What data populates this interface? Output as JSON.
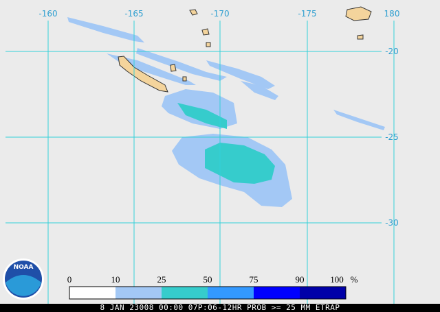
{
  "map": {
    "longitude_labels": [
      "-160",
      "-165",
      "-170",
      "-175",
      "180"
    ],
    "latitude_labels": [
      "-20",
      "-25",
      "-30"
    ],
    "logo": "NOAA",
    "colorbar": {
      "labels": [
        "0",
        "10",
        "25",
        "50",
        "75",
        "90",
        "100"
      ],
      "unit": "%"
    },
    "caption": "8 JAN 23008 00:00 07P:06-12HR PROB >= 25 MM ETRAP"
  }
}
